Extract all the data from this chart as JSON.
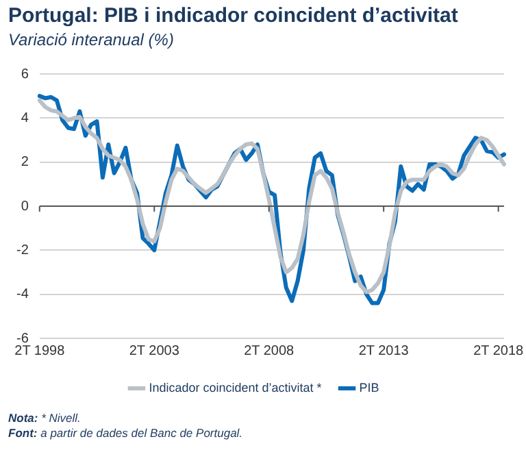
{
  "chart_data": {
    "type": "line",
    "title": "Portugal: PIB i indicador coincident d’activitat",
    "subtitle": "Variació interanual (%)",
    "categories": [
      "2T 1998",
      null,
      null,
      null,
      null,
      null,
      null,
      null,
      null,
      null,
      null,
      null,
      null,
      null,
      null,
      null,
      null,
      null,
      null,
      null,
      "2T 2003",
      null,
      null,
      null,
      null,
      null,
      null,
      null,
      null,
      null,
      null,
      null,
      null,
      null,
      null,
      null,
      null,
      null,
      null,
      null,
      "2T 2008",
      null,
      null,
      null,
      null,
      null,
      null,
      null,
      null,
      null,
      null,
      null,
      null,
      null,
      null,
      null,
      null,
      null,
      null,
      null,
      "2T 2013",
      null,
      null,
      null,
      null,
      null,
      null,
      null,
      null,
      null,
      null,
      null,
      null,
      null,
      null,
      null,
      null,
      null,
      null,
      null,
      "2T 2018",
      null
    ],
    "series": [
      {
        "name": "Indicador coincident d’activitat *",
        "color": "#b9c0c7",
        "values": [
          4.8,
          4.5,
          4.35,
          4.3,
          4.1,
          3.9,
          4.0,
          4.05,
          3.6,
          3.3,
          3.1,
          2.6,
          2.3,
          2.2,
          2.1,
          1.8,
          1.2,
          0.3,
          -0.8,
          -1.5,
          -1.6,
          -1.0,
          0.2,
          1.2,
          1.7,
          1.6,
          1.3,
          1.0,
          0.8,
          0.6,
          0.8,
          1.0,
          1.4,
          1.9,
          2.3,
          2.6,
          2.8,
          2.85,
          2.6,
          1.5,
          0.3,
          -1.0,
          -2.3,
          -3.0,
          -2.8,
          -2.4,
          -1.3,
          0.2,
          1.4,
          1.6,
          1.3,
          0.8,
          -0.3,
          -1.2,
          -2.2,
          -3.0,
          -3.6,
          -3.9,
          -3.8,
          -3.5,
          -3.0,
          -1.8,
          -0.3,
          0.7,
          1.1,
          1.2,
          1.2,
          1.2,
          1.6,
          1.8,
          1.9,
          1.8,
          1.5,
          1.4,
          1.7,
          2.3,
          2.8,
          3.1,
          3.0,
          2.7,
          2.3,
          1.9
        ]
      },
      {
        "name": "PIB",
        "color": "#0b6cb8",
        "values": [
          5.0,
          4.9,
          4.95,
          4.8,
          3.9,
          3.55,
          3.5,
          4.3,
          3.2,
          3.7,
          3.85,
          1.3,
          2.8,
          1.5,
          2.0,
          2.65,
          1.2,
          0.6,
          -1.45,
          -1.7,
          -2.0,
          -0.7,
          0.6,
          1.4,
          2.75,
          1.8,
          1.2,
          1.0,
          0.7,
          0.4,
          0.75,
          0.9,
          1.4,
          1.9,
          2.4,
          2.6,
          2.1,
          2.4,
          2.8,
          1.5,
          0.65,
          0.5,
          -2.1,
          -3.7,
          -4.3,
          -3.4,
          -2.0,
          0.8,
          2.2,
          2.4,
          1.6,
          1.4,
          -0.4,
          -1.3,
          -2.3,
          -3.4,
          -3.2,
          -4.0,
          -4.4,
          -4.4,
          -3.8,
          -1.7,
          -0.7,
          1.8,
          0.9,
          0.7,
          1.0,
          0.75,
          1.9,
          1.9,
          1.8,
          1.6,
          1.25,
          1.45,
          2.3,
          2.7,
          3.1,
          3.0,
          2.5,
          2.45,
          2.2,
          2.35
        ]
      }
    ],
    "ylim": [
      -6,
      6
    ],
    "yticks": [
      -6,
      -4,
      -2,
      0,
      2,
      4,
      6
    ],
    "grid": "y",
    "legend": "bottom",
    "marker": "none",
    "line_style": "solid",
    "ref_lines": [
      {
        "axis": "y",
        "value": 0,
        "color": "#555555"
      }
    ],
    "annotations": [
      "Nota: * Nivell.",
      "Font: a partir de dades del Banc de Portugal."
    ]
  }
}
